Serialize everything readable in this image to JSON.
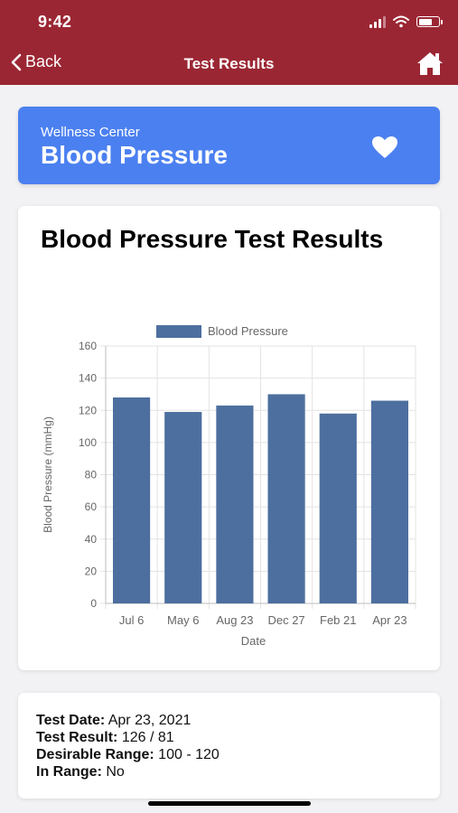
{
  "status_bar": {
    "time": "9:42",
    "icons": [
      "cellular-signal-icon",
      "wifi-icon",
      "battery-icon"
    ]
  },
  "nav": {
    "back_label": "Back",
    "title": "Test Results",
    "home_icon": "home-icon",
    "color": "#9b2633"
  },
  "banner": {
    "subtitle": "Wellness Center",
    "title": "Blood Pressure",
    "icon": "heart-icon",
    "color": "#4b80f0"
  },
  "chart_card": {
    "heading": "Blood Pressure Test Results"
  },
  "chart_data": {
    "type": "bar",
    "categories": [
      "Jul 6",
      "May 6",
      "Aug 23",
      "Dec 27",
      "Feb 21",
      "Apr 23"
    ],
    "series": [
      {
        "name": "Blood Pressure",
        "values": [
          128,
          119,
          123,
          130,
          118,
          126
        ],
        "color": "#4d6f9f"
      }
    ],
    "xlabel": "Date",
    "ylabel": "Blood Pressure (mmHg)",
    "ylim": [
      0,
      160
    ],
    "yticks": [
      0,
      20,
      40,
      60,
      80,
      100,
      120,
      140,
      160
    ],
    "grid": true,
    "legend": "top"
  },
  "result": {
    "test_date_label": "Test Date:",
    "test_date": "Apr 23, 2021",
    "test_result_label": "Test Result:",
    "test_result": "126 / 81",
    "range_label": "Desirable Range:",
    "range": "100 - 120",
    "in_range_label": "In Range:",
    "in_range": "No"
  }
}
